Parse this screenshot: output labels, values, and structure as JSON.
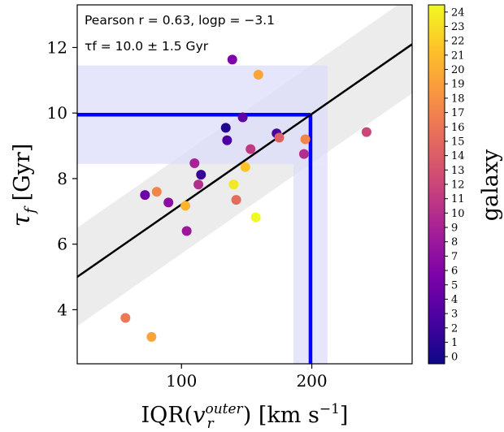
{
  "chart_data": {
    "type": "scatter",
    "xlabel_main": "IQR(",
    "xlabel_v": "v",
    "xlabel_sub": "r",
    "xlabel_sup": "outer",
    "xlabel_units": ") [km s",
    "xlabel_exp": "−1",
    "xlabel_close": "]",
    "ylabel_sym": "τ",
    "ylabel_sub": "f",
    "ylabel_units": " [Gyr]",
    "xlim": [
      20,
      277
    ],
    "ylim": [
      2.35,
      13.3
    ],
    "xticks": [
      100,
      200
    ],
    "yticks": [
      4,
      6,
      8,
      10,
      12
    ],
    "annotation_line1": "Pearson r = 0.63, logp = −3.1",
    "annotation_line2": "τf = 10.0 ± 1.5 Gyr",
    "colorbar_label": "galaxy",
    "colorbar_ticks": [
      0,
      1,
      2,
      3,
      4,
      5,
      6,
      7,
      8,
      9,
      10,
      11,
      12,
      13,
      14,
      15,
      16,
      17,
      18,
      19,
      20,
      21,
      22,
      23,
      24
    ],
    "fit_line": {
      "x": [
        20,
        277
      ],
      "y": [
        5.0,
        12.1
      ]
    },
    "fit_band_halfwidth": 1.5,
    "median_point": {
      "x": 199,
      "y": 9.95
    },
    "horizontal_band": {
      "x": [
        20,
        212
      ],
      "y": [
        8.45,
        11.45
      ]
    },
    "vertical_band": {
      "x": [
        186,
        212
      ],
      "y": [
        2.35,
        8.45
      ]
    },
    "points": [
      {
        "x": 57,
        "y": 3.75,
        "galaxy": 16
      },
      {
        "x": 77,
        "y": 3.17,
        "galaxy": 19
      },
      {
        "x": 72,
        "y": 7.5,
        "galaxy": 5
      },
      {
        "x": 81,
        "y": 7.6,
        "galaxy": 17
      },
      {
        "x": 90,
        "y": 7.27,
        "galaxy": 7
      },
      {
        "x": 103,
        "y": 7.17,
        "galaxy": 20
      },
      {
        "x": 104,
        "y": 6.4,
        "galaxy": 8
      },
      {
        "x": 110,
        "y": 8.47,
        "galaxy": 9
      },
      {
        "x": 113,
        "y": 7.82,
        "galaxy": 10
      },
      {
        "x": 115,
        "y": 8.12,
        "galaxy": 2
      },
      {
        "x": 134,
        "y": 9.55,
        "galaxy": 1
      },
      {
        "x": 135,
        "y": 9.17,
        "galaxy": 3
      },
      {
        "x": 139,
        "y": 11.63,
        "galaxy": 6
      },
      {
        "x": 140,
        "y": 7.82,
        "galaxy": 23
      },
      {
        "x": 142,
        "y": 7.35,
        "galaxy": 15
      },
      {
        "x": 147,
        "y": 9.87,
        "galaxy": 4
      },
      {
        "x": 149,
        "y": 8.35,
        "galaxy": 21
      },
      {
        "x": 153,
        "y": 8.9,
        "galaxy": 11
      },
      {
        "x": 157,
        "y": 6.82,
        "galaxy": 24
      },
      {
        "x": 159,
        "y": 11.17,
        "galaxy": 19
      },
      {
        "x": 173,
        "y": 9.38,
        "galaxy": 3
      },
      {
        "x": 175,
        "y": 9.25,
        "galaxy": 14
      },
      {
        "x": 194,
        "y": 8.75,
        "galaxy": 10
      },
      {
        "x": 195,
        "y": 9.2,
        "galaxy": 17
      },
      {
        "x": 242,
        "y": 9.42,
        "galaxy": 12
      }
    ]
  },
  "colors": {
    "fit_line": "#000000",
    "fit_band": "#ececec",
    "median_lines": "#0000ff",
    "shaded_band": "#dcdcfa"
  }
}
